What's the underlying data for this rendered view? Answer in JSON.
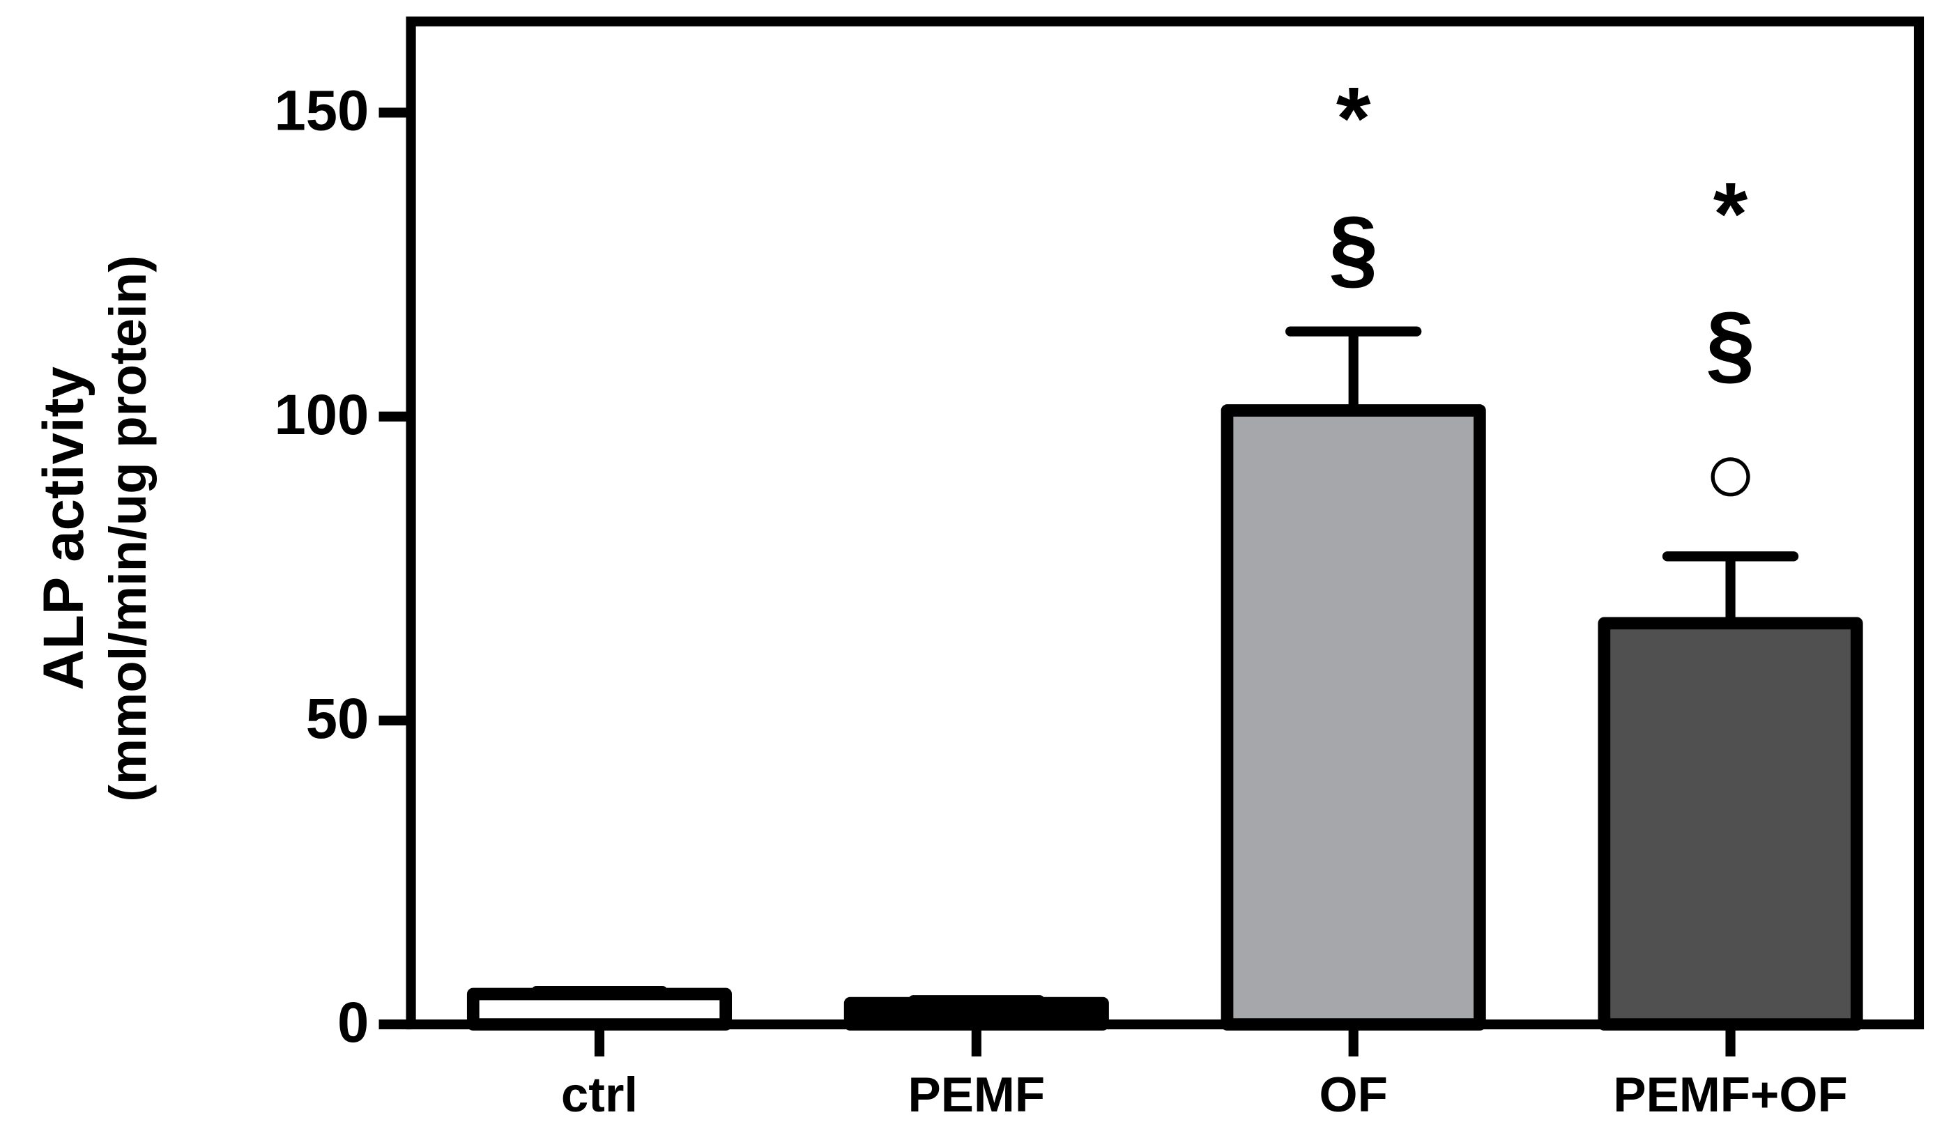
{
  "chart_data": {
    "type": "bar",
    "y_label": [
      "ALP activity",
      "(mmol/min/ug protein)"
    ],
    "categories": [
      "ctrl",
      "PEMF",
      "OF",
      "PEMF+OF"
    ],
    "values": [
      5,
      3.5,
      101,
      66
    ],
    "errors": [
      0.5,
      0.5,
      13,
      11
    ],
    "colors": [
      "#ffffff",
      "#000000",
      "#a6a7aa",
      "#505050"
    ],
    "annotations": [
      {
        "category": "OF",
        "labels": [
          "*",
          "§"
        ]
      },
      {
        "category": "PEMF+OF",
        "labels": [
          "*",
          "§",
          "○"
        ]
      }
    ],
    "ylim": [
      0,
      165
    ],
    "yticks": [
      0,
      50,
      100,
      150
    ]
  }
}
